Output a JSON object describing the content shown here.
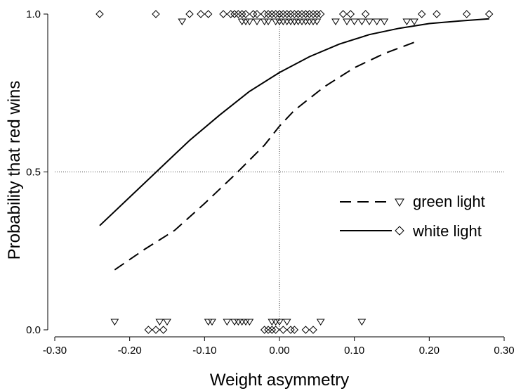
{
  "chart_data": {
    "type": "line",
    "title": "",
    "xlabel": "Weight asymmetry",
    "ylabel": "Probability that red wins",
    "xlim": [
      -0.3,
      0.3
    ],
    "ylim": [
      0.0,
      1.0
    ],
    "x_ticks": [
      -0.3,
      -0.2,
      -0.1,
      0.0,
      0.1,
      0.2,
      0.3
    ],
    "x_tick_labels": [
      "-0.30",
      "-0.20",
      "-0.10",
      "0.00",
      "0.10",
      "0.20",
      "0.30"
    ],
    "y_ticks": [
      0.0,
      0.5,
      1.0
    ],
    "y_tick_labels": [
      "0.0",
      "0.5",
      "1.0"
    ],
    "reference_lines": {
      "vertical_x": 0.0,
      "horizontal_y": 0.5,
      "style": "dotted"
    },
    "grid": false,
    "legend_position": "right-middle",
    "series": [
      {
        "name": "green light",
        "line_style": "dashed",
        "marker": "triangle-down",
        "x": [
          -0.22,
          -0.18,
          -0.14,
          -0.1,
          -0.06,
          -0.02,
          0.0,
          0.02,
          0.06,
          0.1,
          0.14,
          0.185
        ],
        "y": [
          0.19,
          0.255,
          0.315,
          0.4,
          0.49,
          0.585,
          0.645,
          0.695,
          0.77,
          0.83,
          0.875,
          0.915
        ],
        "outcomes_red_wins_x": [
          -0.05,
          -0.045,
          -0.04,
          -0.03,
          -0.02,
          -0.015,
          -0.005,
          0.0,
          0.005,
          0.01,
          0.015,
          0.02,
          0.025,
          0.03,
          0.035,
          0.045,
          0.05,
          0.09,
          0.1,
          0.11,
          0.12,
          0.13,
          0.14,
          0.17,
          0.18
        ],
        "outcomes_red_wins_x_extra": [
          -0.13,
          0.02,
          0.04,
          0.075
        ],
        "outcomes_red_loses_x": [
          -0.22,
          -0.16,
          -0.15,
          -0.095,
          -0.09,
          -0.07,
          -0.06,
          -0.055,
          -0.05,
          -0.045,
          -0.04,
          -0.01,
          -0.005,
          0.0,
          0.01,
          0.055,
          0.11
        ]
      },
      {
        "name": "white light",
        "line_style": "solid",
        "marker": "diamond",
        "x": [
          -0.24,
          -0.2,
          -0.16,
          -0.12,
          -0.08,
          -0.04,
          0.0,
          0.04,
          0.08,
          0.12,
          0.16,
          0.2,
          0.24,
          0.28
        ],
        "y": [
          0.33,
          0.42,
          0.51,
          0.6,
          0.68,
          0.755,
          0.815,
          0.865,
          0.905,
          0.935,
          0.955,
          0.97,
          0.978,
          0.985
        ],
        "outcomes_red_wins_x": [
          -0.24,
          -0.165,
          -0.12,
          -0.105,
          -0.095,
          -0.075,
          -0.065,
          -0.06,
          -0.055,
          -0.05,
          -0.045,
          -0.035,
          -0.03,
          -0.02,
          -0.015,
          -0.01,
          -0.005,
          0.0,
          0.005,
          0.01,
          0.015,
          0.02,
          0.025,
          0.03,
          0.035,
          0.04,
          0.045,
          0.05,
          0.055,
          0.085,
          0.095,
          0.115,
          0.19,
          0.21,
          0.25,
          0.28
        ],
        "outcomes_red_loses_x": [
          -0.175,
          -0.165,
          -0.155,
          -0.02,
          -0.015,
          -0.01,
          -0.005,
          0.005,
          0.015,
          0.02,
          0.035,
          0.045
        ]
      }
    ]
  }
}
